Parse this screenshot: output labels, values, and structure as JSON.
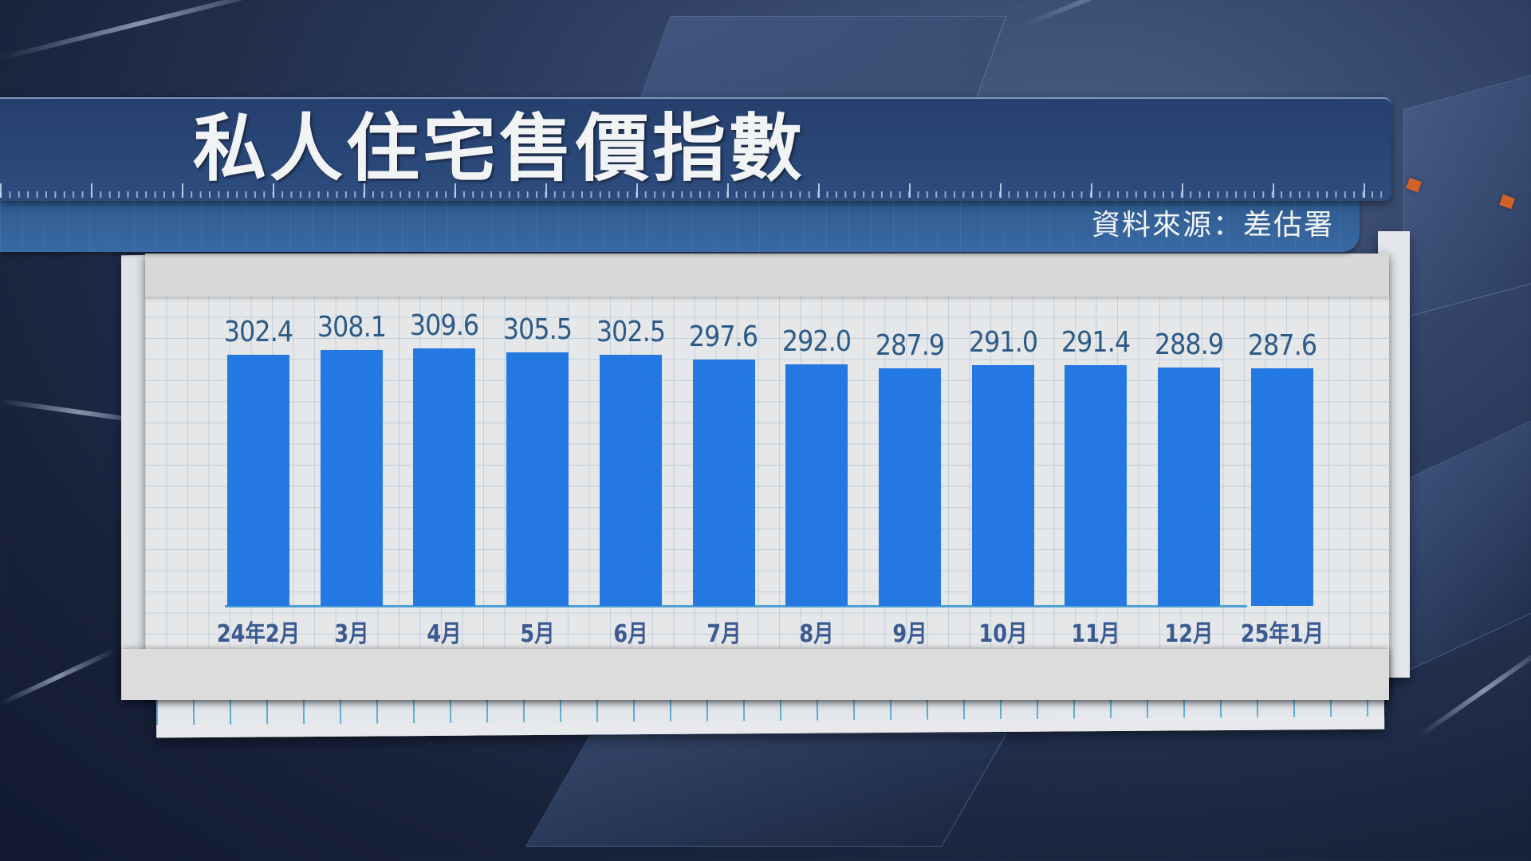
{
  "header": {
    "title": "私人住宅售價指數",
    "source": "資料來源：差估署"
  },
  "colors": {
    "title_bar": "#2a4778",
    "source_bar": "#3a6aa3",
    "bar": "#2478e2",
    "value_label": "#2c5a86",
    "axis_label": "#3b5a92",
    "baseline": "#4fa0d6",
    "paper": "#e6e7e9"
  },
  "chart_data": {
    "type": "bar",
    "title": "私人住宅售價指數",
    "source": "資料來源：差估署",
    "categories": [
      "24年2月",
      "3月",
      "4月",
      "5月",
      "6月",
      "7月",
      "8月",
      "9月",
      "10月",
      "11月",
      "12月",
      "25年1月"
    ],
    "values": [
      302.4,
      308.1,
      309.6,
      305.5,
      302.5,
      297.6,
      292.0,
      287.9,
      291.0,
      291.4,
      288.9,
      287.6
    ],
    "value_labels": [
      "302.4",
      "308.1",
      "309.6",
      "305.5",
      "302.5",
      "297.6",
      "292.0",
      "287.9",
      "291.0",
      "291.4",
      "288.9",
      "287.6"
    ],
    "xlabel": "",
    "ylabel": "",
    "y_axis_visible": false,
    "grid": false,
    "legend": null,
    "data_labels": "above bars"
  }
}
